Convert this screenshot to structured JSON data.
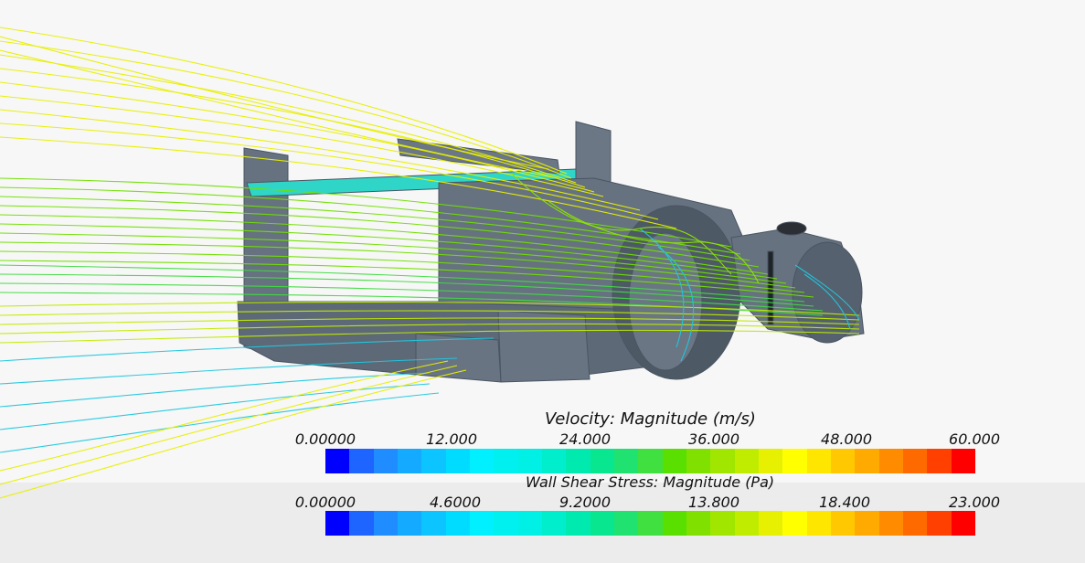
{
  "velocity_legend": {
    "title": "Velocity: Magnitude (m/s)",
    "ticks": [
      "0.00000",
      "12.000",
      "24.000",
      "36.000",
      "48.000",
      "60.000"
    ],
    "min": 0,
    "max": 60
  },
  "shear_legend": {
    "title": "Wall Shear Stress: Magnitude (Pa)",
    "ticks": [
      "0.00000",
      "4.6000",
      "9.2000",
      "13.800",
      "18.400",
      "23.000"
    ],
    "min": 0,
    "max": 23
  },
  "colormap": [
    "#0000ff",
    "#1e64ff",
    "#1f8cff",
    "#14aaff",
    "#0cc4ff",
    "#00dcff",
    "#00f0ff",
    "#00f0f0",
    "#00f0e6",
    "#00eecc",
    "#00eab0",
    "#08e690",
    "#20e270",
    "#40e040",
    "#5ae000",
    "#80e000",
    "#a0e600",
    "#c0ec00",
    "#e6f000",
    "#ffff00",
    "#ffe600",
    "#ffc800",
    "#ffaa00",
    "#ff8c00",
    "#ff6a00",
    "#ff4000",
    "#ff0000"
  ]
}
